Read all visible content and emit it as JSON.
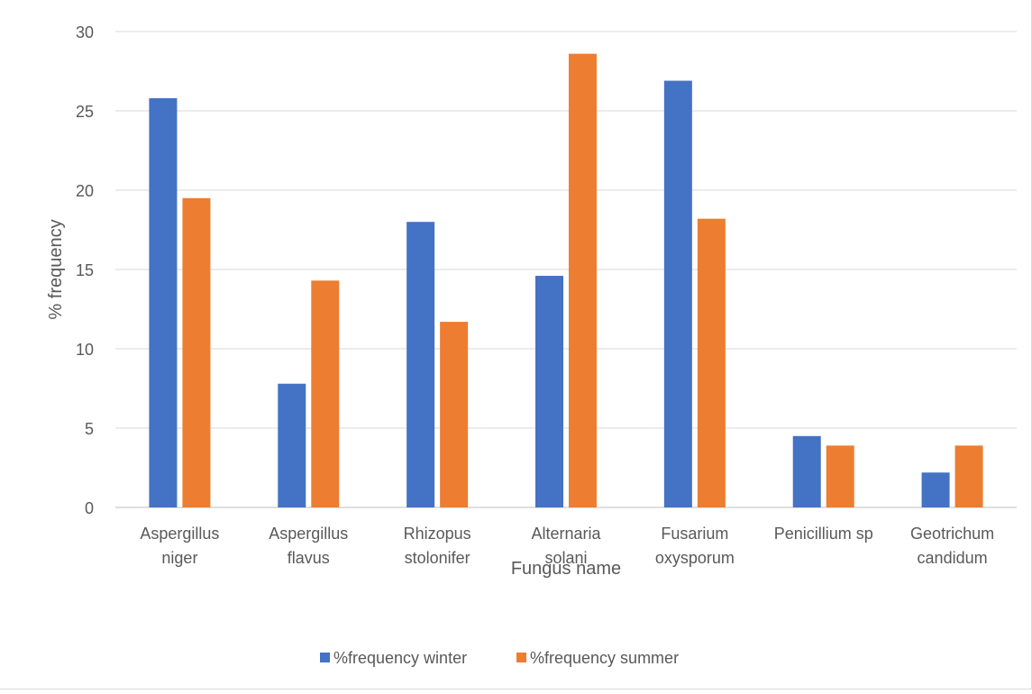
{
  "chart_data": {
    "type": "bar",
    "title": "",
    "xlabel": "Fungus name",
    "ylabel": "% frequency",
    "ylim": [
      0,
      30
    ],
    "yticks": [
      0,
      5,
      10,
      15,
      20,
      25,
      30
    ],
    "grid": true,
    "legend_position": "bottom",
    "categories": [
      [
        "Aspergillus",
        "niger"
      ],
      [
        "Aspergillus",
        "flavus"
      ],
      [
        "Rhizopus",
        "stolonifer"
      ],
      [
        "Alternaria",
        "solani"
      ],
      [
        "Fusarium",
        "oxysporum"
      ],
      [
        "Penicillium sp"
      ],
      [
        "Geotrichum",
        "candidum"
      ]
    ],
    "series": [
      {
        "name": "%frequency winter",
        "color": "#4472C4",
        "values": [
          25.8,
          7.8,
          18.0,
          14.6,
          26.9,
          4.5,
          2.2
        ]
      },
      {
        "name": "%frequency summer",
        "color": "#ED7D31",
        "values": [
          19.5,
          14.3,
          11.7,
          28.6,
          18.2,
          3.9,
          3.9
        ]
      }
    ]
  }
}
